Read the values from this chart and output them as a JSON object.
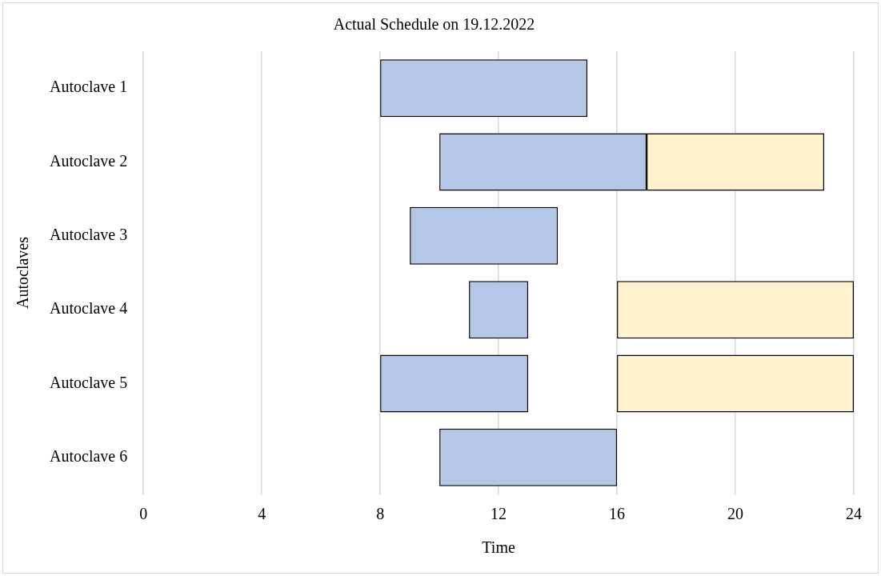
{
  "chart_data": {
    "type": "bar",
    "orientation": "horizontal",
    "title": "Actual Schedule on 19.12.2022",
    "xlabel": "Time",
    "ylabel": "Autoclaves",
    "categories": [
      "Autoclave 1",
      "Autoclave 2",
      "Autoclave 3",
      "Autoclave 4",
      "Autoclave 5",
      "Autoclave 6"
    ],
    "series": [
      {
        "color": "#b4c7e7",
        "values": [
          7,
          7,
          5,
          2,
          5,
          6
        ],
        "base": [
          8,
          10,
          9,
          11,
          8,
          10
        ]
      },
      {
        "color": "#fff2cc",
        "values": [
          null,
          6,
          null,
          8,
          8,
          null
        ],
        "base": [
          null,
          17,
          null,
          16,
          16,
          null
        ]
      }
    ],
    "xlim": [
      0,
      24
    ],
    "xticks": [
      0,
      4,
      8,
      12,
      16,
      20,
      24
    ],
    "grid": "x",
    "legend": false
  }
}
